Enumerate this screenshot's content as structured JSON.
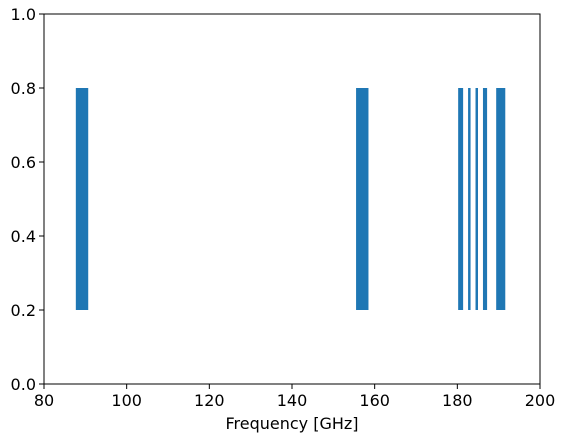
{
  "chart_data": {
    "type": "bar",
    "xlabel": "Frequency [GHz]",
    "ylabel": "",
    "xlim": [
      80,
      200
    ],
    "ylim": [
      0,
      1.0
    ],
    "x_ticks": [
      "80",
      "100",
      "120",
      "140",
      "160",
      "180",
      "200"
    ],
    "y_ticks": [
      "0.0",
      "0.2",
      "0.4",
      "0.6",
      "0.8",
      "1.0"
    ],
    "grid": false,
    "color": "#1f77b4",
    "bands": [
      {
        "start": 87.7,
        "end": 90.7,
        "bottom": 0.2,
        "top": 0.8
      },
      {
        "start": 155.5,
        "end": 158.5,
        "bottom": 0.2,
        "top": 0.8
      },
      {
        "start": 180.2,
        "end": 181.4,
        "bottom": 0.2,
        "top": 0.8
      },
      {
        "start": 182.6,
        "end": 183.2,
        "bottom": 0.2,
        "top": 0.8
      },
      {
        "start": 184.4,
        "end": 185.0,
        "bottom": 0.2,
        "top": 0.8
      },
      {
        "start": 186.2,
        "end": 187.2,
        "bottom": 0.2,
        "top": 0.8
      },
      {
        "start": 189.4,
        "end": 191.6,
        "bottom": 0.2,
        "top": 0.8
      }
    ]
  }
}
